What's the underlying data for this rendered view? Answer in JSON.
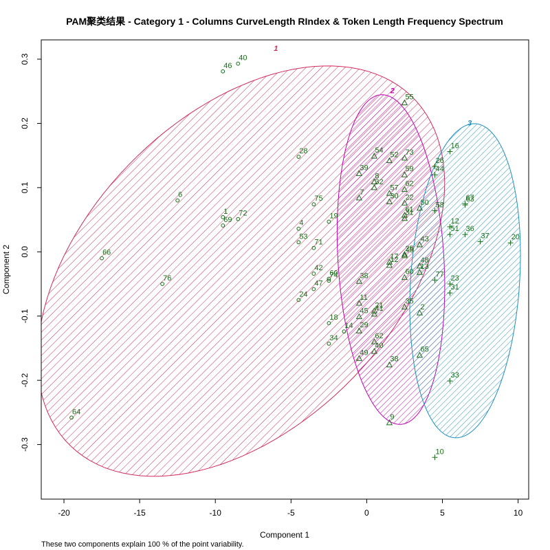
{
  "chart_data": {
    "type": "scatter",
    "title": "PAM聚类结果 - Category  1  - Columns  CurveLength RIndex  &  Token Length Frequency Spectrum",
    "xlabel": "Component 1",
    "ylabel": "Component 2",
    "footnote": "These two components explain 100 % of the point variability.",
    "xlim": [
      -21.5,
      10.7
    ],
    "ylim": [
      -0.385,
      0.33
    ],
    "xticks": [
      -20,
      -15,
      -10,
      -5,
      0,
      5,
      10
    ],
    "yticks": [
      -0.3,
      -0.2,
      -0.1,
      0.0,
      0.1,
      0.2,
      0.3
    ],
    "grid": false,
    "colors": {
      "points": "#1a6b1a",
      "cluster1": "#d1295b",
      "cluster2": "#c000b0",
      "cluster3": "#1f8fbf",
      "frame": "#000000"
    },
    "clusters": [
      {
        "label": "1",
        "symbol": "circle",
        "color": "#d1295b",
        "ellipse": {
          "cx": -8.3,
          "cy": -0.03,
          "rx": 10.5,
          "ry": 0.37,
          "angle": -40.5
        },
        "label_at": [
          -6.0,
          0.313
        ],
        "points": [
          {
            "id": "40",
            "x": -8.5,
            "y": 0.293
          },
          {
            "id": "46",
            "x": -9.5,
            "y": 0.281
          },
          {
            "id": "28",
            "x": -4.5,
            "y": 0.148
          },
          {
            "id": "6",
            "x": -12.5,
            "y": 0.08
          },
          {
            "id": "75",
            "x": -3.5,
            "y": 0.074
          },
          {
            "id": "1",
            "x": -9.5,
            "y": 0.054
          },
          {
            "id": "72",
            "x": -8.5,
            "y": 0.051
          },
          {
            "id": "69",
            "x": -9.5,
            "y": 0.041
          },
          {
            "id": "19",
            "x": -2.5,
            "y": 0.047
          },
          {
            "id": "4",
            "x": -4.5,
            "y": 0.036
          },
          {
            "id": "53",
            "x": -4.5,
            "y": 0.015
          },
          {
            "id": "71",
            "x": -3.5,
            "y": 0.006
          },
          {
            "id": "66",
            "x": -17.5,
            "y": -0.01
          },
          {
            "id": "42",
            "x": -3.5,
            "y": -0.034
          },
          {
            "id": "76",
            "x": -13.5,
            "y": -0.05
          },
          {
            "id": "60",
            "x": -2.5,
            "y": -0.042
          },
          {
            "id": "74",
            "x": -2.5,
            "y": -0.045
          },
          {
            "id": "47",
            "x": -3.5,
            "y": -0.058
          },
          {
            "id": "24",
            "x": -4.5,
            "y": -0.075
          },
          {
            "id": "18",
            "x": -2.5,
            "y": -0.111
          },
          {
            "id": "14",
            "x": -1.5,
            "y": -0.124
          },
          {
            "id": "34",
            "x": -2.5,
            "y": -0.143
          },
          {
            "id": "64",
            "x": -19.5,
            "y": -0.258
          }
        ]
      },
      {
        "label": "2",
        "symbol": "triangle",
        "color": "#c000b0",
        "ellipse": {
          "cx": 1.6,
          "cy": -0.012,
          "rx": 0.257,
          "ry": 3.5,
          "angle": 93.2
        },
        "label_at": [
          1.7,
          0.247
        ],
        "points": [
          {
            "id": "55",
            "x": 2.5,
            "y": 0.232
          },
          {
            "id": "54",
            "x": 0.5,
            "y": 0.149
          },
          {
            "id": "52",
            "x": 1.5,
            "y": 0.142
          },
          {
            "id": "73",
            "x": 2.5,
            "y": 0.146
          },
          {
            "id": "39",
            "x": -0.5,
            "y": 0.122
          },
          {
            "id": "59",
            "x": 2.5,
            "y": 0.12
          },
          {
            "id": "8",
            "x": 0.5,
            "y": 0.109
          },
          {
            "id": "32",
            "x": 0.5,
            "y": 0.1
          },
          {
            "id": "57",
            "x": 1.5,
            "y": 0.091
          },
          {
            "id": "62",
            "x": 2.5,
            "y": 0.097
          },
          {
            "id": "7",
            "x": -0.5,
            "y": 0.084
          },
          {
            "id": "30",
            "x": 1.5,
            "y": 0.078
          },
          {
            "id": "22",
            "x": 2.5,
            "y": 0.076
          },
          {
            "id": "50",
            "x": 3.5,
            "y": 0.068
          },
          {
            "id": "61",
            "x": 2.5,
            "y": 0.057
          },
          {
            "id": "31",
            "x": 2.5,
            "y": 0.052
          },
          {
            "id": "43",
            "x": 3.5,
            "y": 0.011
          },
          {
            "id": "25",
            "x": 2.5,
            "y": -0.004
          },
          {
            "id": "45",
            "x": 2.5,
            "y": -0.006
          },
          {
            "id": "17",
            "x": 1.5,
            "y": -0.016
          },
          {
            "id": "12",
            "x": 1.5,
            "y": -0.021
          },
          {
            "id": "48",
            "x": 3.5,
            "y": -0.022
          },
          {
            "id": "13",
            "x": 3.5,
            "y": -0.032
          },
          {
            "id": "60",
            "x": 2.5,
            "y": -0.04
          },
          {
            "id": "38",
            "x": -0.5,
            "y": -0.046
          },
          {
            "id": "11",
            "x": -0.5,
            "y": -0.08
          },
          {
            "id": "35",
            "x": 2.5,
            "y": -0.086
          },
          {
            "id": "2",
            "x": 3.5,
            "y": -0.095
          },
          {
            "id": "21",
            "x": 0.5,
            "y": -0.092
          },
          {
            "id": "41",
            "x": 0.5,
            "y": -0.097
          },
          {
            "id": "45",
            "x": -0.5,
            "y": -0.101
          },
          {
            "id": "29",
            "x": -0.5,
            "y": -0.123
          },
          {
            "id": "62",
            "x": 0.5,
            "y": -0.14
          },
          {
            "id": "40",
            "x": 0.5,
            "y": -0.155
          },
          {
            "id": "49",
            "x": -0.5,
            "y": -0.166
          },
          {
            "id": "65",
            "x": 3.5,
            "y": -0.161
          },
          {
            "id": "38",
            "x": 1.5,
            "y": -0.176
          },
          {
            "id": "9",
            "x": 1.5,
            "y": -0.266
          }
        ]
      },
      {
        "label": "3",
        "symbol": "plus",
        "color": "#1f8fbf",
        "ellipse": {
          "cx": 6.5,
          "cy": -0.045,
          "rx": 0.245,
          "ry": 3.6,
          "angle": 86.5
        },
        "label_at": [
          6.8,
          0.197
        ],
        "points": [
          {
            "id": "16",
            "x": 5.5,
            "y": 0.156
          },
          {
            "id": "26",
            "x": 4.5,
            "y": 0.133
          },
          {
            "id": "44",
            "x": 4.5,
            "y": 0.12
          },
          {
            "id": "67",
            "x": 6.5,
            "y": 0.075
          },
          {
            "id": "63",
            "x": 6.5,
            "y": 0.073
          },
          {
            "id": "58",
            "x": 4.5,
            "y": 0.064
          },
          {
            "id": "12",
            "x": 5.5,
            "y": 0.039
          },
          {
            "id": "36",
            "x": 6.5,
            "y": 0.027
          },
          {
            "id": "37",
            "x": 7.5,
            "y": 0.016
          },
          {
            "id": "20",
            "x": 9.5,
            "y": 0.014
          },
          {
            "id": "51",
            "x": 5.5,
            "y": 0.027
          },
          {
            "id": "77",
            "x": 4.5,
            "y": -0.044
          },
          {
            "id": "23",
            "x": 5.5,
            "y": -0.05
          },
          {
            "id": "31",
            "x": 5.5,
            "y": -0.064
          },
          {
            "id": "33",
            "x": 5.5,
            "y": -0.201
          },
          {
            "id": "10",
            "x": 4.5,
            "y": -0.32
          }
        ]
      }
    ]
  }
}
